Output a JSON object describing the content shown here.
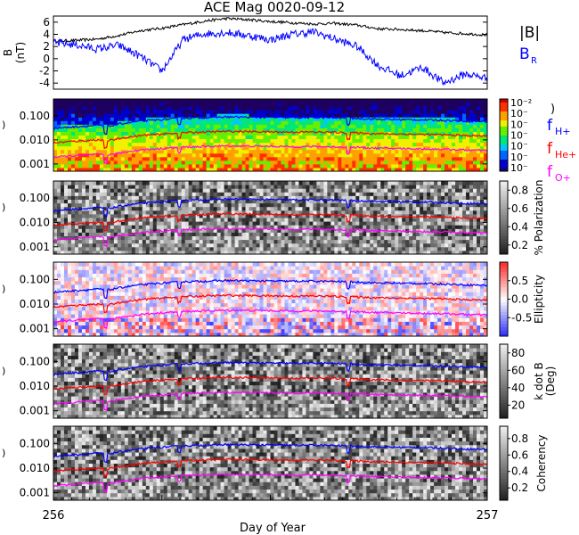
{
  "title": "ACE Mag 0020-09-12",
  "xaxis": {
    "label": "Day of Year",
    "ticks": [
      "256",
      "257"
    ],
    "range": [
      256,
      257
    ]
  },
  "colors": {
    "bmag": "#000000",
    "br": "#0000ff",
    "fH": "#0000ff",
    "fHe": "#ff0000",
    "fO": "#ff00ff"
  },
  "chart_data": [
    {
      "type": "line",
      "ylabel": "B (nT)",
      "ylabel_lines": [
        "B",
        "(nT)"
      ],
      "ylim": [
        -5,
        7
      ],
      "yticks": [
        "6",
        "4",
        "2",
        "0",
        "-2",
        "-4"
      ],
      "ytick_values": [
        6,
        4,
        2,
        0,
        -2,
        -4
      ],
      "legend": [
        {
          "label": "|B|",
          "color": "#000000"
        },
        {
          "label": "B",
          "sub": "R",
          "color": "#0000ff"
        }
      ],
      "x": [
        256.0,
        256.05,
        256.1,
        256.15,
        256.2,
        256.25,
        256.3,
        256.35,
        256.4,
        256.45,
        256.5,
        256.55,
        256.6,
        256.65,
        256.7,
        256.75,
        256.8,
        256.85,
        256.9,
        256.95,
        257.0
      ],
      "series": [
        {
          "name": "|B|",
          "values": [
            2.9,
            3.0,
            3.2,
            3.8,
            4.6,
            5.0,
            5.6,
            6.2,
            6.6,
            6.4,
            6.1,
            5.9,
            5.7,
            5.8,
            5.5,
            4.9,
            4.8,
            4.6,
            4.3,
            4.1,
            3.9
          ]
        },
        {
          "name": "B_R",
          "values": [
            2.6,
            2.3,
            1.6,
            2.2,
            0.4,
            -2.0,
            3.2,
            4.1,
            4.3,
            3.8,
            3.1,
            4.0,
            4.4,
            3.2,
            2.0,
            -1.2,
            -2.8,
            -1.4,
            -4.0,
            -2.5,
            -3.2
          ]
        }
      ]
    },
    {
      "type": "heatmap",
      "ylabel": "",
      "yscale": "log",
      "ylim": [
        0.0005,
        0.5
      ],
      "yticks": [
        "0.100",
        "0.010",
        "0.001"
      ],
      "ytick_values": [
        0.1,
        0.01,
        0.001
      ],
      "colorbar": {
        "label": ")",
        "ticks": [
          "10⁻²",
          "10⁻",
          "10⁻",
          "10⁻",
          "10⁻",
          "10⁻",
          "10⁻"
        ],
        "colors": [
          "#0000aa",
          "#0050ff",
          "#00c8ff",
          "#00e070",
          "#aaff00",
          "#ffd000",
          "#ff6000",
          "#e00000"
        ]
      },
      "legend": [
        {
          "label": "f",
          "sub": "H+",
          "color": "#0000ff"
        },
        {
          "label": "f",
          "sub": "He+",
          "color": "#ff0000"
        },
        {
          "label": "f",
          "sub": "O+",
          "color": "#ff00ff"
        }
      ]
    },
    {
      "type": "heatmap",
      "yscale": "log",
      "ylim": [
        0.0005,
        0.5
      ],
      "yticks": [
        "0.100",
        "0.010",
        "0.001"
      ],
      "ytick_values": [
        0.1,
        0.01,
        0.001
      ],
      "colorbar": {
        "label": "% Polarization",
        "ticks": [
          "0.8",
          "0.6",
          "0.4",
          "0.2"
        ],
        "tick_values": [
          0.8,
          0.6,
          0.4,
          0.2
        ],
        "range": [
          0.1,
          0.9
        ]
      }
    },
    {
      "type": "heatmap",
      "yscale": "log",
      "ylim": [
        0.0005,
        0.5
      ],
      "yticks": [
        "0.100",
        "0.010",
        "0.001"
      ],
      "ytick_values": [
        0.1,
        0.01,
        0.001
      ],
      "colorbar": {
        "label": "Ellipticity",
        "ticks": [
          "0.5",
          "0.0",
          "-0.5"
        ],
        "tick_values": [
          0.5,
          0.0,
          -0.5
        ],
        "range": [
          -1,
          1
        ]
      }
    },
    {
      "type": "heatmap",
      "yscale": "log",
      "ylim": [
        0.0005,
        0.5
      ],
      "yticks": [
        "0.100",
        "0.010",
        "0.001"
      ],
      "ytick_values": [
        0.1,
        0.01,
        0.001
      ],
      "colorbar": {
        "label": "k dot B",
        "label2": "(Deg)",
        "ticks": [
          "80",
          "60",
          "40",
          "20"
        ],
        "tick_values": [
          80,
          60,
          40,
          20
        ],
        "range": [
          5,
          90
        ]
      }
    },
    {
      "type": "heatmap",
      "yscale": "log",
      "ylim": [
        0.0005,
        0.5
      ],
      "yticks": [
        "0.100",
        "0.010",
        "0.001"
      ],
      "ytick_values": [
        0.1,
        0.01,
        0.001
      ],
      "colorbar": {
        "label": "Coherency",
        "ticks": [
          "0.8",
          "0.6",
          "0.4",
          "0.2"
        ],
        "tick_values": [
          0.8,
          0.6,
          0.4,
          0.2
        ],
        "range": [
          0.05,
          0.95
        ]
      }
    }
  ],
  "gyro_lines": {
    "x": [
      256.0,
      256.05,
      256.1,
      256.13,
      256.15,
      256.2,
      256.25,
      256.3,
      256.35,
      256.4,
      256.45,
      256.5,
      256.55,
      256.6,
      256.65,
      256.7,
      256.75,
      256.8,
      256.85,
      256.9,
      256.95,
      257.0
    ],
    "fH": [
      0.03,
      0.035,
      0.04,
      0.038,
      0.045,
      0.06,
      0.07,
      0.08,
      0.085,
      0.09,
      0.088,
      0.086,
      0.084,
      0.085,
      0.082,
      0.078,
      0.072,
      0.07,
      0.068,
      0.065,
      0.06,
      0.058
    ],
    "fHe": [
      0.0075,
      0.0088,
      0.01,
      0.0095,
      0.0112,
      0.015,
      0.0175,
      0.02,
      0.0212,
      0.0225,
      0.022,
      0.0215,
      0.021,
      0.0212,
      0.0205,
      0.0195,
      0.018,
      0.0175,
      0.017,
      0.0162,
      0.015,
      0.0145
    ],
    "fO": [
      0.0019,
      0.0022,
      0.0025,
      0.0024,
      0.0028,
      0.0038,
      0.0044,
      0.005,
      0.0053,
      0.0056,
      0.0055,
      0.0054,
      0.0052,
      0.0053,
      0.0051,
      0.0049,
      0.0045,
      0.0044,
      0.0042,
      0.0041,
      0.0038,
      0.0036
    ],
    "dips": [
      {
        "x": 256.12,
        "factor": 0.45
      },
      {
        "x": 256.29,
        "factor": 0.6
      },
      {
        "x": 256.68,
        "factor": 0.55
      }
    ]
  }
}
